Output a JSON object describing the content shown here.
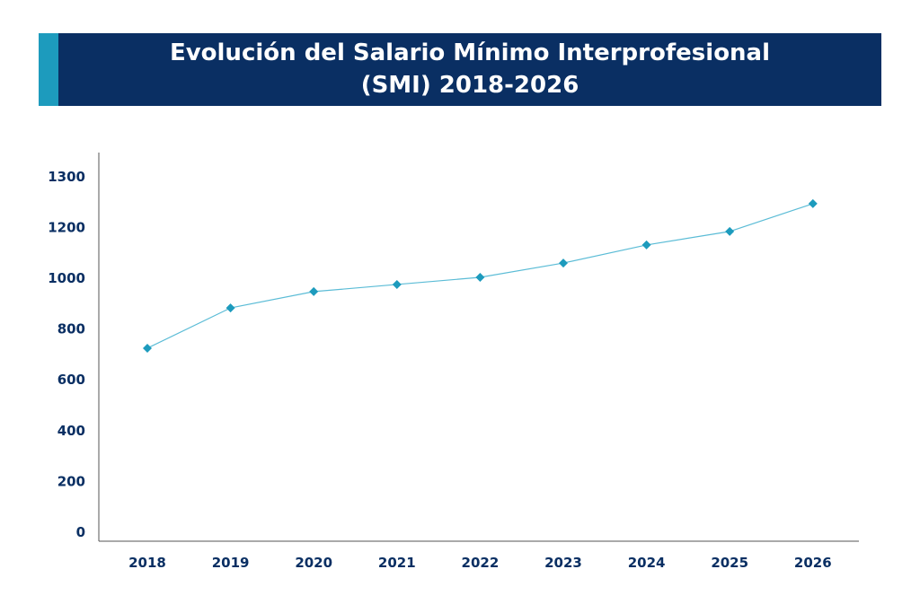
{
  "title_line1": "Evolución del Salario Mínimo Interprofesional",
  "title_line2": "(SMI) 2018-2026",
  "colors": {
    "banner": "#0a2f63",
    "accent": "#1d9bbd",
    "series": "#1d9bbd",
    "text": "#0a2f63"
  },
  "chart_data": {
    "type": "line",
    "title": "Evolución del Salario Mínimo Interprofesional (SMI) 2018-2026",
    "categories": [
      "2018",
      "2019",
      "2020",
      "2021",
      "2022",
      "2023",
      "2024",
      "2025",
      "2026"
    ],
    "values": [
      722,
      880,
      944,
      972,
      1000,
      1056,
      1127,
      1180,
      1289
    ],
    "y_tick_labels": [
      "0",
      "200",
      "400",
      "600",
      "800",
      "1000",
      "1200",
      "1300"
    ],
    "ylim": [
      0,
      1400
    ],
    "grid": false,
    "marker": "diamond"
  }
}
